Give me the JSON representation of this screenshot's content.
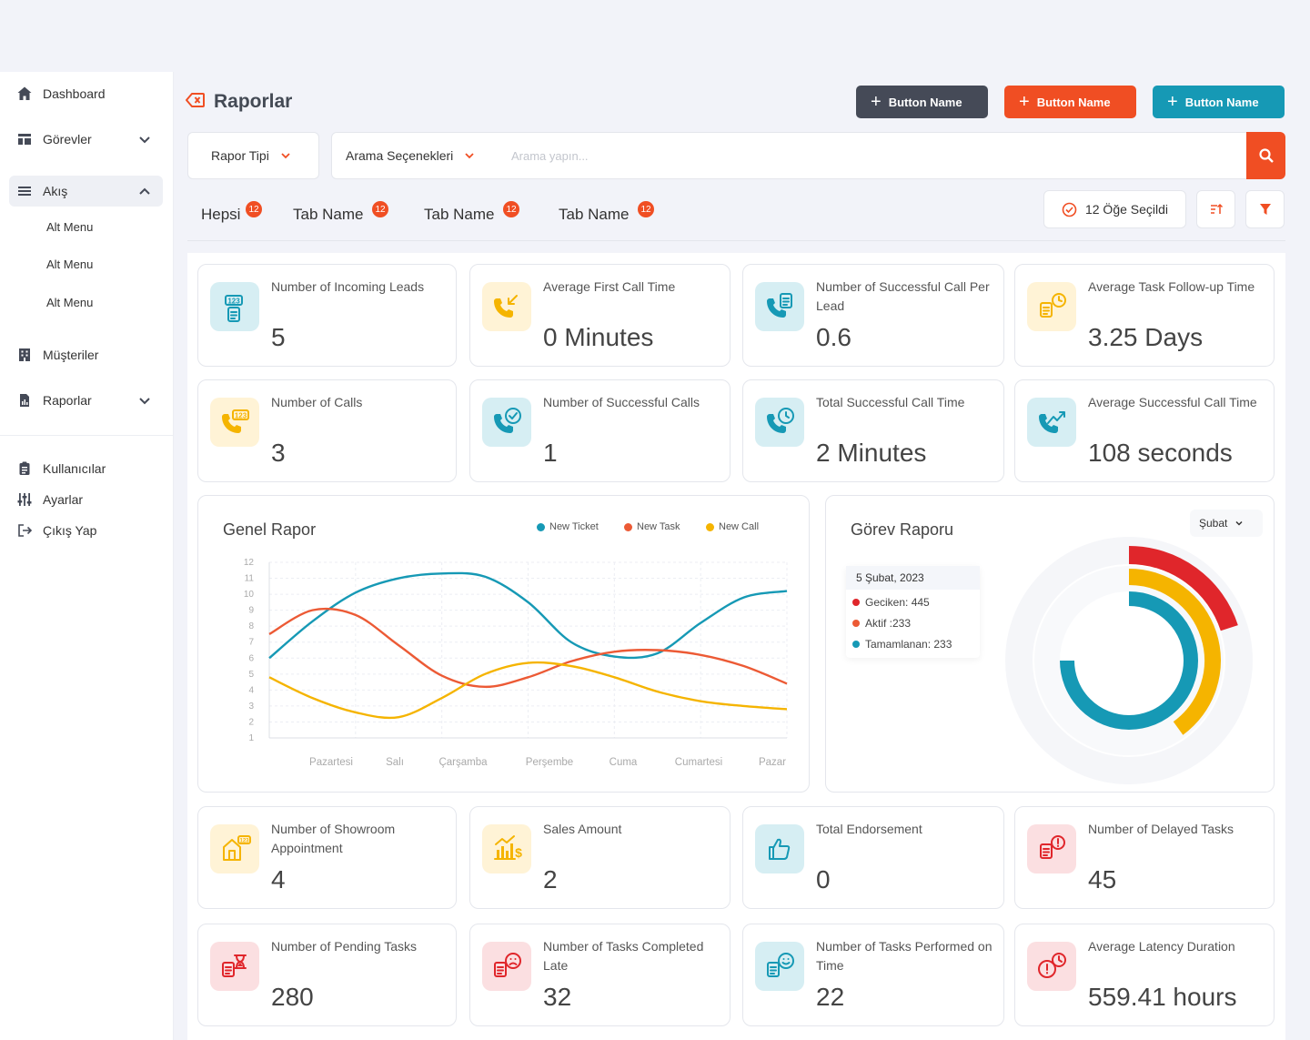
{
  "sidebar": {
    "items": [
      {
        "label": "Dashboard"
      },
      {
        "label": "Görevler"
      },
      {
        "label": "Akış"
      },
      {
        "label": "Müşteriler"
      },
      {
        "label": "Raporlar"
      },
      {
        "label": "Kullanıcılar"
      },
      {
        "label": "Ayarlar"
      },
      {
        "label": "Çıkış Yap"
      }
    ],
    "sub_items": [
      {
        "label": "Alt Menu"
      },
      {
        "label": "Alt Menu"
      },
      {
        "label": "Alt Menu"
      }
    ]
  },
  "header": {
    "title": "Raporlar",
    "buttons": [
      {
        "label": "Button Name",
        "color": "#454a57"
      },
      {
        "label": "Button Name",
        "color": "#f04e23"
      },
      {
        "label": "Button Name",
        "color": "#1699b5"
      }
    ]
  },
  "search": {
    "report_type": "Rapor Tipi",
    "search_options": "Arama Seçenekleri",
    "placeholder": "Arama yapın..."
  },
  "tabs": [
    {
      "label": "Hepsi",
      "count": "12"
    },
    {
      "label": "Tab Name",
      "count": "12"
    },
    {
      "label": "Tab Name",
      "count": "12"
    },
    {
      "label": "Tab Name",
      "count": "12"
    }
  ],
  "toolbar": {
    "selected_label": "12 Öğe Seçildi"
  },
  "stats_top": [
    {
      "label": "Number of Incoming Leads",
      "value": "5",
      "icon": "lead-number-icon",
      "tone": "teal"
    },
    {
      "label": "Average First Call Time",
      "value": "0 Minutes",
      "icon": "incoming-call-icon",
      "tone": "yellow"
    },
    {
      "label": "Number of Successful Call Per Lead",
      "value": "0.6",
      "icon": "call-document-icon",
      "tone": "teal"
    },
    {
      "label": "Average Task Follow-up Time",
      "value": "3.25 Days",
      "icon": "task-clock-icon",
      "tone": "yellow"
    },
    {
      "label": "Number of Calls",
      "value": "3",
      "icon": "call-number-icon",
      "tone": "yellow"
    },
    {
      "label": "Number of Successful Calls",
      "value": "1",
      "icon": "call-check-icon",
      "tone": "teal"
    },
    {
      "label": "Total Successful Call Time",
      "value": "2 Minutes",
      "icon": "call-clock-icon",
      "tone": "teal"
    },
    {
      "label": "Average Successful Call Time",
      "value": "108 seconds",
      "icon": "call-trend-icon",
      "tone": "teal"
    }
  ],
  "stats_bottom": [
    {
      "label": "Number of Showroom Appointment",
      "value": "4",
      "icon": "showroom-icon",
      "tone": "yellow"
    },
    {
      "label": "Sales Amount",
      "value": "2",
      "icon": "sales-chart-icon",
      "tone": "yellow"
    },
    {
      "label": "Total Endorsement",
      "value": "0",
      "icon": "thumbs-up-icon",
      "tone": "teal"
    },
    {
      "label": "Number of Delayed Tasks",
      "value": "45",
      "icon": "delayed-task-icon",
      "tone": "red"
    },
    {
      "label": "Number of Pending Tasks",
      "value": "280",
      "icon": "pending-task-icon",
      "tone": "red"
    },
    {
      "label": "Number of Tasks Completed Late",
      "value": "32",
      "icon": "late-task-icon",
      "tone": "red"
    },
    {
      "label": "Number of Tasks Performed on Time",
      "value": "22",
      "icon": "ontime-task-icon",
      "tone": "teal"
    },
    {
      "label": "Average Latency Duration",
      "value": "559.41 hours",
      "icon": "latency-icon",
      "tone": "red"
    }
  ],
  "tones": {
    "teal": {
      "bg": "#d6eef3",
      "fg": "#1699b5"
    },
    "yellow": {
      "bg": "#fff3d6",
      "fg": "#f5b400"
    },
    "red": {
      "bg": "#fbdfe1",
      "fg": "#e0262b"
    }
  },
  "general_report": {
    "title": "Genel Rapor",
    "legend": [
      {
        "name": "New Ticket",
        "color": "#1699b5"
      },
      {
        "name": "New Task",
        "color": "#ec5a35"
      },
      {
        "name": "New Call",
        "color": "#f5b400"
      }
    ]
  },
  "task_report": {
    "title": "Görev Raporu",
    "month": "Şubat",
    "tooltip_date": "5 Şubat, 2023",
    "tooltip_rows": [
      {
        "text": "Geciken: 445",
        "color": "#e0262b"
      },
      {
        "text": "Aktif :233",
        "color": "#ec5a35"
      },
      {
        "text": "Tamamlanan: 233",
        "color": "#1699b5"
      }
    ]
  },
  "chart_data": [
    {
      "type": "line",
      "title": "Genel Rapor",
      "categories": [
        "Pazartesi",
        "Salı",
        "Çarşamba",
        "Perşembe",
        "Cuma",
        "Cumartesi",
        "Pazar"
      ],
      "yticks": [
        1,
        2,
        3,
        4,
        5,
        6,
        7,
        8,
        9,
        10,
        11,
        12
      ],
      "ylim": [
        1,
        12
      ],
      "x": [
        0,
        0.5,
        1,
        1.5,
        2,
        2.5,
        3,
        3.5,
        4,
        4.5,
        5,
        5.5,
        6
      ],
      "series": [
        {
          "name": "New Ticket",
          "color": "#1699b5",
          "values": [
            6,
            8.3,
            10.1,
            11,
            11.3,
            11.1,
            9.5,
            7,
            6.1,
            6.3,
            8.2,
            9.8,
            10.2
          ]
        },
        {
          "name": "New Task",
          "color": "#ec5a35",
          "values": [
            7.5,
            9,
            8.7,
            6.8,
            4.9,
            4.2,
            4.8,
            5.8,
            6.4,
            6.5,
            6.2,
            5.5,
            4.4
          ]
        },
        {
          "name": "New Call",
          "color": "#f5b400",
          "values": [
            4.8,
            3.5,
            2.6,
            2.3,
            3.5,
            5,
            5.7,
            5.5,
            4.8,
            3.9,
            3.3,
            3,
            2.8
          ]
        }
      ],
      "grid": true,
      "legend": "top-right"
    },
    {
      "type": "pie",
      "title": "Görev Raporu",
      "variant": "radial-progress",
      "series": [
        {
          "name": "Geciken",
          "value": 445,
          "color": "#e0262b",
          "fraction": 0.2
        },
        {
          "name": "Aktif",
          "value": 233,
          "color": "#f5b400",
          "fraction": 0.4
        },
        {
          "name": "Tamamlanan",
          "value": 233,
          "color": "#1699b5",
          "fraction": 0.75
        }
      ]
    }
  ]
}
